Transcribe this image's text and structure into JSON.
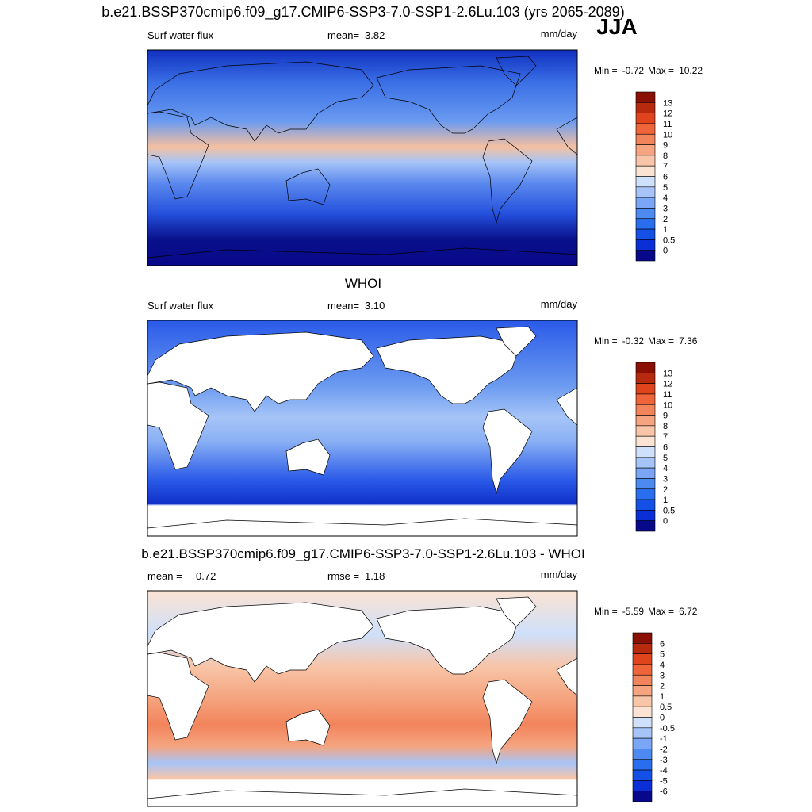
{
  "title": "b.e21.BSSP370cmip6.f09_g17.CMIP6-SSP3-7.0-SSP1-2.6Lu.103 (yrs 2065-2089)",
  "season": "JJA",
  "panels": [
    {
      "left": {
        "label": "Surf water flux"
      },
      "center": {
        "label": "mean=",
        "value": "3.82"
      },
      "units": "mm/day",
      "min_label": "Min =",
      "min": "-0.72",
      "max_label": "Max =",
      "max": "10.22",
      "colorbar": {
        "labels": [
          13,
          12,
          11,
          10,
          9,
          8,
          7,
          6,
          5,
          4,
          3,
          2,
          1,
          0.5,
          0
        ],
        "colors": [
          "#8a1004",
          "#b82a0e",
          "#e0441c",
          "#ef6438",
          "#f2845c",
          "#f5a47f",
          "#f8c5a8",
          "#fbe3d3",
          "#cfe0fa",
          "#a6c4f7",
          "#7aa6f5",
          "#4c8af2",
          "#2a6ef0",
          "#1450e6",
          "#0a2fd6",
          "#08088a"
        ]
      }
    },
    {
      "heading": "WHOI",
      "left": {
        "label": "Surf water flux"
      },
      "center": {
        "label": "mean=",
        "value": "3.10"
      },
      "units": "mm/day",
      "min_label": "Min =",
      "min": "-0.32",
      "max_label": "Max =",
      "max": "7.36",
      "colorbar": {
        "labels": [
          13,
          12,
          11,
          10,
          9,
          8,
          7,
          6,
          5,
          4,
          3,
          2,
          1,
          0.5,
          0
        ],
        "colors": [
          "#8a1004",
          "#b82a0e",
          "#e0441c",
          "#ef6438",
          "#f2845c",
          "#f5a47f",
          "#f8c5a8",
          "#fbe3d3",
          "#cfe0fa",
          "#a6c4f7",
          "#7aa6f5",
          "#4c8af2",
          "#2a6ef0",
          "#1450e6",
          "#0a2fd6",
          "#08088a"
        ]
      }
    },
    {
      "heading": "b.e21.BSSP370cmip6.f09_g17.CMIP6-SSP3-7.0-SSP1-2.6Lu.103 - WHOI",
      "left": {
        "label": "mean =",
        "value": "0.72"
      },
      "center": {
        "label": "rmse =",
        "value": "1.18"
      },
      "units": "mm/day",
      "min_label": "Min =",
      "min": "-5.59",
      "max_label": "Max =",
      "max": "6.72",
      "colorbar": {
        "labels": [
          6,
          5,
          4,
          3,
          2,
          1,
          0.5,
          0,
          -0.5,
          -1,
          -2,
          -3,
          -4,
          -5,
          -6
        ],
        "colors": [
          "#8a1004",
          "#b82a0e",
          "#e0441c",
          "#ef6438",
          "#f2845c",
          "#f5a47f",
          "#f8c5a8",
          "#fbe3d3",
          "#cfe0fa",
          "#a6c4f7",
          "#7aa6f5",
          "#4c8af2",
          "#2a6ef0",
          "#1450e6",
          "#0a2fd6",
          "#08088a"
        ]
      }
    }
  ]
}
